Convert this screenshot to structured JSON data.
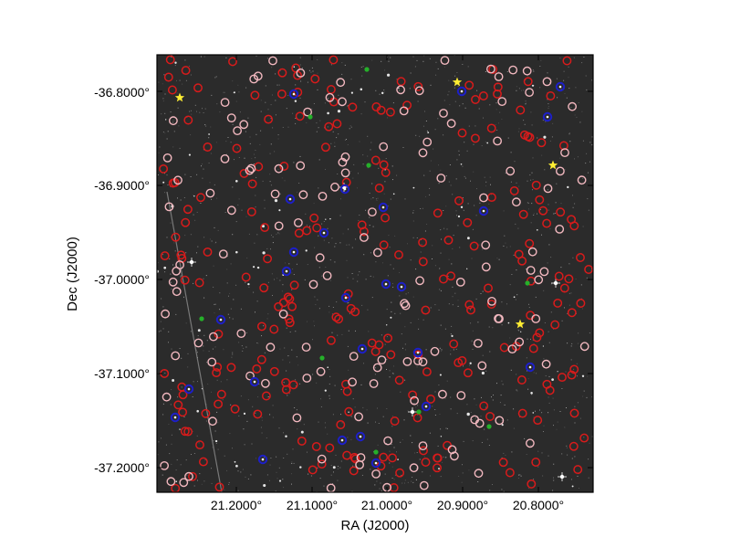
{
  "figure": {
    "xlabel": "RA (J2000)",
    "ylabel": "Dec (J2000)",
    "x_ticks": [
      "21.2000°",
      "21.1000°",
      "21.0000°",
      "20.9000°",
      "20.8000°"
    ],
    "y_ticks": [
      "-36.8000°",
      "-36.9000°",
      "-37.0000°",
      "-37.1000°",
      "-37.2000°"
    ],
    "colors": {
      "background": "#2b2b2b",
      "marker_red": "#d81b1b",
      "marker_pink": "#f2b8bf",
      "marker_blue": "#1d1fc9",
      "marker_green": "#25b02a",
      "marker_yellow": "#ffee33"
    }
  }
}
